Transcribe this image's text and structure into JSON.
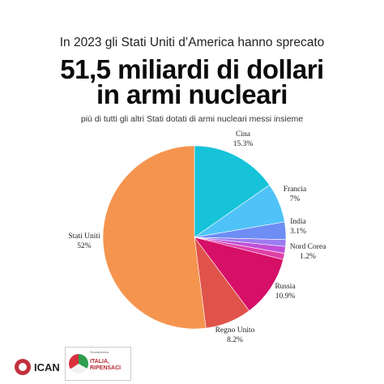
{
  "header": {
    "intro": "In 2023 gli Stati Uniti d’America hanno sprecato",
    "headline_line1": "51,5 miliardi di dollari",
    "headline_line2": "in armi nucleari",
    "subtitle": "più di tutti gli altri Stati dotati di armi nucleari messi insieme"
  },
  "chart_data": {
    "type": "pie",
    "title": "",
    "slices": [
      {
        "name": "Cina",
        "value": 15.3,
        "label": "15.3%",
        "color": "#16c3d9"
      },
      {
        "name": "Francia",
        "value": 7,
        "label": "7%",
        "color": "#4fc3f7"
      },
      {
        "name": "India",
        "value": 3.1,
        "label": "3.1%",
        "color": "#6e8df5"
      },
      {
        "name": "",
        "value": 1.2,
        "label": "",
        "color": "#9b7cf0"
      },
      {
        "name": "Nord Corea",
        "value": 1.2,
        "label": "1.2%",
        "color": "#c04fd8"
      },
      {
        "name": "",
        "value": 1.1,
        "label": "",
        "color": "#e040a8"
      },
      {
        "name": "Russia",
        "value": 10.9,
        "label": "10.9%",
        "color": "#d60f67"
      },
      {
        "name": "Regno Unito",
        "value": 8.2,
        "label": "8.2%",
        "color": "#e0534a"
      },
      {
        "name": "Stati Uniti",
        "value": 52,
        "label": "52%",
        "color": "#f5944f"
      }
    ],
    "start_angle_deg": 0,
    "direction": "clockwise"
  },
  "footer": {
    "ican_logo_text": "ICAN",
    "italia_logo_text": "ITALIA, RIPENSACI",
    "italia_small_text": "Senzatomica"
  },
  "colors": {
    "background": "#ffffff",
    "headline": "#0b0b0b"
  }
}
